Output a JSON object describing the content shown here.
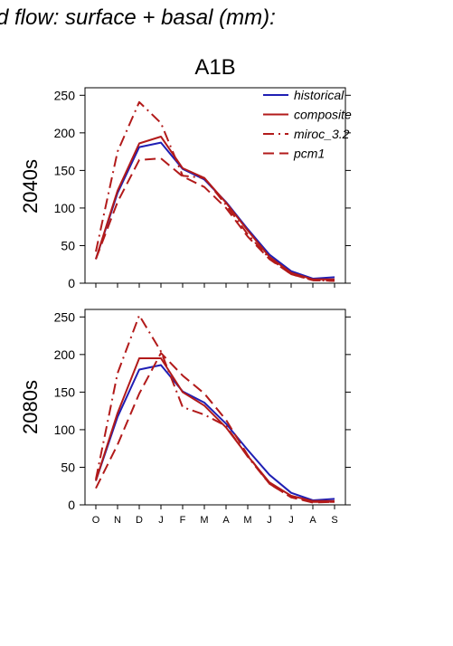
{
  "figure": {
    "suptitle": "d flow: surface + basal (mm):",
    "scenario": "A1B"
  },
  "colors": {
    "historical": "#1f1fb4",
    "composite": "#b21a1a",
    "miroc_3.2": "#b21a1a",
    "pcm1": "#b21a1a",
    "axis": "#000000"
  },
  "chart_data": [
    {
      "type": "line",
      "panel_label": "2040s",
      "title": "A1B",
      "x": [
        "O",
        "N",
        "D",
        "J",
        "F",
        "M",
        "A",
        "M",
        "J",
        "J",
        "A",
        "S"
      ],
      "xtick_labels": [
        "",
        "",
        "",
        "",
        "",
        "",
        "",
        "",
        "",
        "",
        "",
        ""
      ],
      "ylim": [
        0,
        260
      ],
      "yticks": [
        0,
        50,
        100,
        150,
        200,
        250
      ],
      "legend": {
        "placement": "top-right",
        "entries": [
          "historical",
          "composite",
          "miroc_3.2",
          "pcm1"
        ]
      },
      "series": [
        {
          "name": "historical",
          "style": "solid",
          "values": [
            32,
            120,
            181,
            187,
            152,
            138,
            108,
            72,
            38,
            16,
            6,
            8
          ]
        },
        {
          "name": "composite",
          "style": "solid",
          "values": [
            32,
            123,
            186,
            195,
            153,
            140,
            107,
            70,
            35,
            14,
            5,
            5
          ]
        },
        {
          "name": "miroc_3.2",
          "style": "dashdot",
          "values": [
            42,
            175,
            241,
            213,
            143,
            140,
            104,
            65,
            33,
            12,
            4,
            3
          ]
        },
        {
          "name": "pcm1",
          "style": "dashed",
          "values": [
            32,
            108,
            164,
            166,
            142,
            128,
            100,
            62,
            32,
            12,
            4,
            3
          ]
        }
      ]
    },
    {
      "type": "line",
      "panel_label": "2080s",
      "x": [
        "O",
        "N",
        "D",
        "J",
        "F",
        "M",
        "A",
        "M",
        "J",
        "J",
        "A",
        "S"
      ],
      "xtick_labels": [
        "O",
        "N",
        "D",
        "J",
        "F",
        "M",
        "A",
        "M",
        "J",
        "J",
        "A",
        "S"
      ],
      "ylim": [
        0,
        260
      ],
      "yticks": [
        0,
        50,
        100,
        150,
        200,
        250
      ],
      "series": [
        {
          "name": "historical",
          "style": "solid",
          "values": [
            32,
            117,
            180,
            186,
            151,
            136,
            108,
            73,
            40,
            16,
            6,
            8
          ]
        },
        {
          "name": "composite",
          "style": "solid",
          "values": [
            32,
            122,
            195,
            195,
            150,
            132,
            103,
            65,
            30,
            12,
            5,
            5
          ]
        },
        {
          "name": "miroc_3.2",
          "style": "dashdot",
          "values": [
            34,
            175,
            252,
            204,
            130,
            120,
            105,
            64,
            28,
            10,
            4,
            4
          ]
        },
        {
          "name": "pcm1",
          "style": "dashed",
          "values": [
            22,
            80,
            148,
            202,
            172,
            148,
            113,
            66,
            28,
            10,
            3,
            4
          ]
        }
      ]
    }
  ]
}
